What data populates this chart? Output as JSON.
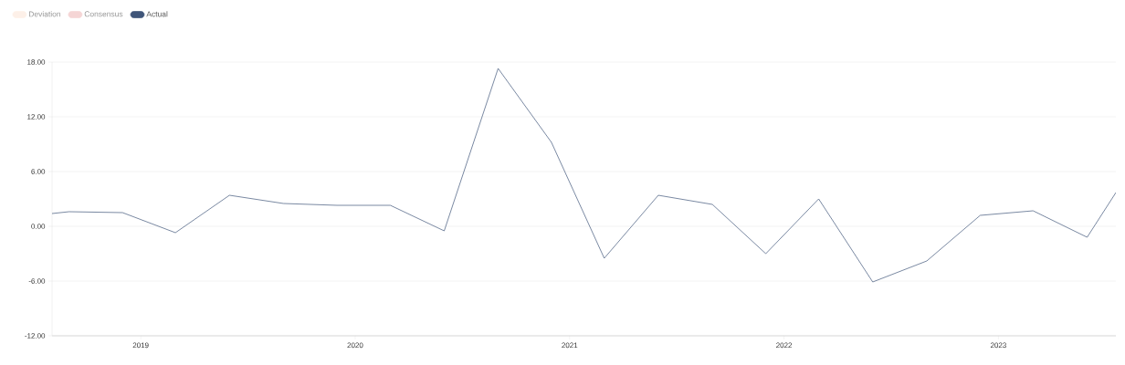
{
  "chart_data": {
    "type": "line",
    "x": [
      "2018-08-03",
      "2018-09-01",
      "2018-12-01",
      "2019-03-01",
      "2019-06-01",
      "2019-09-01",
      "2019-12-01",
      "2020-03-01",
      "2020-06-01",
      "2020-09-01",
      "2020-12-01",
      "2021-03-01",
      "2021-06-01",
      "2021-09-01",
      "2021-12-01",
      "2022-03-01",
      "2022-06-01",
      "2022-09-01",
      "2022-12-01",
      "2023-03-01",
      "2023-06-01",
      "2023-07-20"
    ],
    "series": [
      {
        "name": "Deviation",
        "color": "#fdf0e8",
        "values": [
          null,
          null,
          null,
          null,
          null,
          null,
          null,
          null,
          null,
          null,
          null,
          null,
          null,
          null,
          null,
          null,
          null,
          null,
          null,
          null,
          null,
          null
        ]
      },
      {
        "name": "Consensus",
        "color": "#f5d5d5",
        "values": [
          null,
          null,
          null,
          null,
          null,
          null,
          null,
          null,
          null,
          null,
          null,
          null,
          null,
          null,
          null,
          null,
          null,
          null,
          null,
          null,
          null,
          null
        ]
      },
      {
        "name": "Actual",
        "color": "#3f5579",
        "values": [
          1.4,
          1.6,
          1.5,
          -0.7,
          3.4,
          2.5,
          2.3,
          2.3,
          -0.5,
          17.3,
          9.2,
          -3.5,
          3.4,
          2.4,
          -3.0,
          3.0,
          -6.1,
          -3.8,
          1.2,
          1.7,
          -1.2,
          3.7
        ]
      }
    ],
    "xlim": [
      "2018-08-03",
      "2023-07-20"
    ],
    "xticks": [
      "2019",
      "2020",
      "2021",
      "2022",
      "2023"
    ],
    "ylim": [
      -12,
      18
    ],
    "yticks": [
      {
        "value": 18,
        "label": "18.00"
      },
      {
        "value": 12,
        "label": "12.00"
      },
      {
        "value": 6,
        "label": "6.00"
      },
      {
        "value": 0,
        "label": "0.00"
      },
      {
        "value": -6,
        "label": "-6.00"
      },
      {
        "value": -12,
        "label": "-12.00"
      }
    ],
    "grid": "y",
    "legend": "top left"
  }
}
